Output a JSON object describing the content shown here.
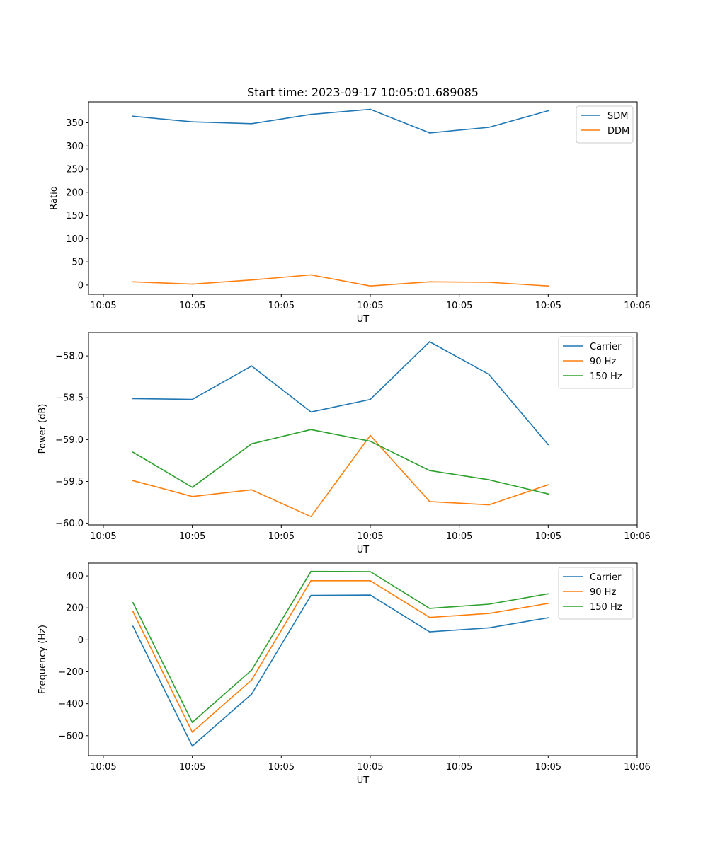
{
  "chart_data": [
    {
      "type": "line",
      "title": "Start time: 2023-09-17 10:05:01.689085",
      "xlabel": "UT",
      "ylabel": "Ratio",
      "xlim": [
        -0.75,
        8.5
      ],
      "ylim": [
        -20,
        395
      ],
      "x_ticks": [
        -0.5,
        1,
        2.5,
        4,
        5.5,
        7,
        8.5
      ],
      "x_tick_labels": [
        "10:05",
        "10:05",
        "10:05",
        "10:05",
        "10:05",
        "10:05",
        "10:06"
      ],
      "y_ticks": [
        0,
        50,
        100,
        150,
        200,
        250,
        300,
        350
      ],
      "y_tick_labels": [
        "0",
        "50",
        "100",
        "150",
        "200",
        "250",
        "300",
        "350"
      ],
      "x": [
        0,
        1,
        2,
        3,
        4,
        5,
        6,
        7
      ],
      "legend_position": "top-right",
      "series": [
        {
          "name": "SDM",
          "color": "#1f77b4",
          "values": [
            364,
            352,
            348,
            368,
            379,
            328,
            340,
            376
          ]
        },
        {
          "name": "DDM",
          "color": "#ff7f0e",
          "values": [
            7,
            2,
            11,
            22,
            -2,
            7,
            6,
            -2
          ]
        }
      ]
    },
    {
      "type": "line",
      "title": "",
      "xlabel": "UT",
      "ylabel": "Power (dB)",
      "xlim": [
        -0.75,
        8.5
      ],
      "ylim": [
        -60.02,
        -57.72
      ],
      "x_ticks": [
        -0.5,
        1,
        2.5,
        4,
        5.5,
        7,
        8.5
      ],
      "x_tick_labels": [
        "10:05",
        "10:05",
        "10:05",
        "10:05",
        "10:05",
        "10:05",
        "10:06"
      ],
      "y_ticks": [
        -60.0,
        -59.5,
        -59.0,
        -58.5,
        -58.0
      ],
      "y_tick_labels": [
        "−60.0",
        "−59.5",
        "−59.0",
        "−58.5",
        "−58.0"
      ],
      "x": [
        0,
        1,
        2,
        3,
        4,
        5,
        6,
        7
      ],
      "legend_position": "top-right",
      "series": [
        {
          "name": "Carrier",
          "color": "#1f77b4",
          "values": [
            -58.51,
            -58.52,
            -58.12,
            -58.67,
            -58.52,
            -57.83,
            -58.22,
            -59.06
          ]
        },
        {
          "name": "90 Hz",
          "color": "#ff7f0e",
          "values": [
            -59.49,
            -59.68,
            -59.6,
            -59.92,
            -58.95,
            -59.74,
            -59.78,
            -59.54
          ]
        },
        {
          "name": "150 Hz",
          "color": "#2ca02c",
          "values": [
            -59.15,
            -59.57,
            -59.05,
            -58.88,
            -59.02,
            -59.37,
            -59.48,
            -59.65
          ]
        }
      ]
    },
    {
      "type": "line",
      "title": "",
      "xlabel": "UT",
      "ylabel": "Frequency (Hz)",
      "xlim": [
        -0.75,
        8.5
      ],
      "ylim": [
        -725,
        480
      ],
      "x_ticks": [
        -0.5,
        1,
        2.5,
        4,
        5.5,
        7,
        8.5
      ],
      "x_tick_labels": [
        "10:05",
        "10:05",
        "10:05",
        "10:05",
        "10:05",
        "10:05",
        "10:06"
      ],
      "y_ticks": [
        -600,
        -400,
        -200,
        0,
        200,
        400
      ],
      "y_tick_labels": [
        "−600",
        "−400",
        "−200",
        "0",
        "200",
        "400"
      ],
      "x": [
        0,
        1,
        2,
        3,
        4,
        5,
        6,
        7
      ],
      "legend_position": "top-right",
      "series": [
        {
          "name": "Carrier",
          "color": "#1f77b4",
          "values": [
            85,
            -665,
            -340,
            278,
            280,
            50,
            75,
            138
          ]
        },
        {
          "name": "90 Hz",
          "color": "#ff7f0e",
          "values": [
            177,
            -578,
            -252,
            370,
            370,
            140,
            165,
            228
          ]
        },
        {
          "name": "150 Hz",
          "color": "#2ca02c",
          "values": [
            233,
            -517,
            -190,
            428,
            427,
            197,
            223,
            288
          ]
        }
      ]
    }
  ]
}
